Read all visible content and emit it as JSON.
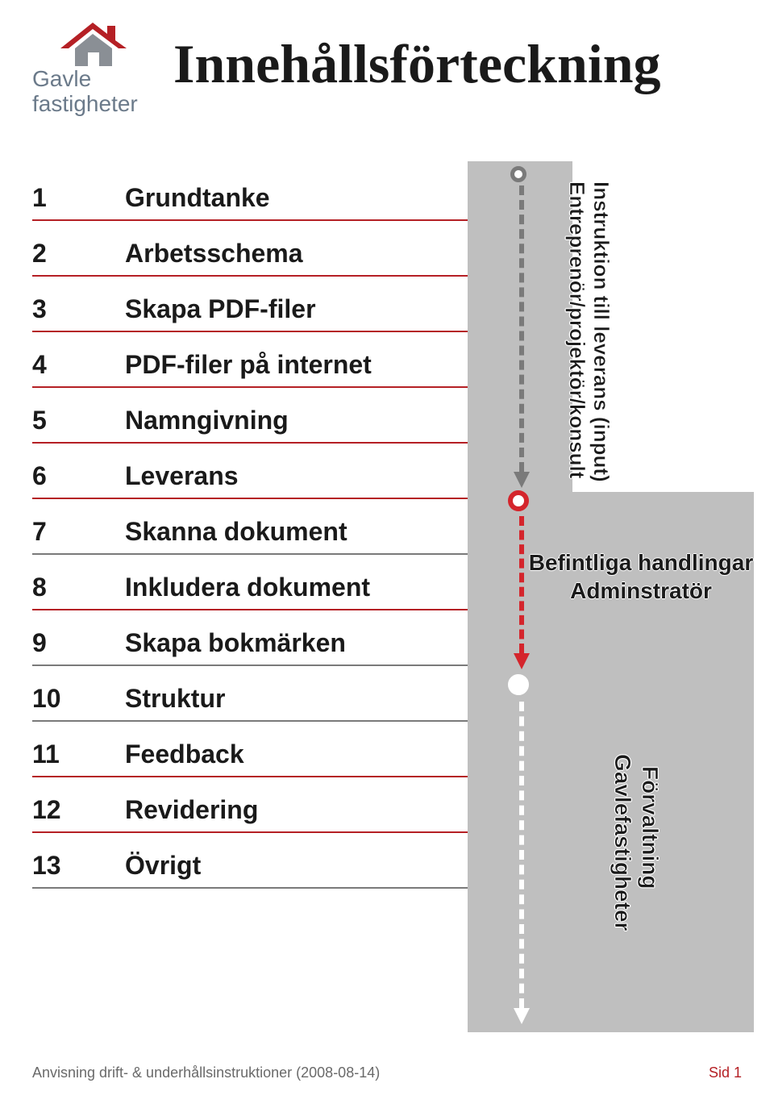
{
  "logo": {
    "line1": "Gavle",
    "line2": "fastigheter",
    "text_color": "#6b7a8a",
    "roof_red": "#b52025",
    "wall_grey": "#8a8f95"
  },
  "title": "Innehållsförteckning",
  "colors": {
    "rule_red": "#b52025",
    "rule_grey": "#7a7a7a",
    "grey_block": "#bfbfbf",
    "arrow_grey": "#7a7a7a",
    "arrow_red": "#d4252c",
    "arrow_white": "#ffffff",
    "text_dark": "#1a1a1a",
    "footer_grey": "#6a6a6a",
    "footer_red": "#b52025"
  },
  "toc": [
    {
      "num": "1",
      "label": "Grundtanke",
      "rule": "#b52025"
    },
    {
      "num": "2",
      "label": "Arbetsschema",
      "rule": "#b52025"
    },
    {
      "num": "3",
      "label": "Skapa PDF-filer",
      "rule": "#b52025"
    },
    {
      "num": "4",
      "label": "PDF-filer på internet",
      "rule": "#b52025"
    },
    {
      "num": "5",
      "label": "Namngivning",
      "rule": "#b52025"
    },
    {
      "num": "6",
      "label": "Leverans",
      "rule": "#b52025"
    },
    {
      "num": "7",
      "label": "Skanna dokument",
      "rule": "#7a7a7a"
    },
    {
      "num": "8",
      "label": "Inkludera dokument",
      "rule": "#b52025"
    },
    {
      "num": "9",
      "label": "Skapa bokmärken",
      "rule": "#7a7a7a"
    },
    {
      "num": "10",
      "label": "Struktur",
      "rule": "#7a7a7a"
    },
    {
      "num": "11",
      "label": "Feedback",
      "rule": "#b52025"
    },
    {
      "num": "12",
      "label": "Revidering",
      "rule": "#b52025"
    },
    {
      "num": "13",
      "label": "Övrigt",
      "rule": "#7a7a7a"
    }
  ],
  "side_labels": {
    "block1_line1": "Instruktion till leverans (input)",
    "block1_line2": "Entreprenör/projektör/konsult",
    "block2_line1": "Befintliga handlingar",
    "block2_line2": "Adminstratör",
    "block3_line1": "Förvaltning",
    "block3_line2": "Gavlefastigheter"
  },
  "footer": {
    "left": "Anvisning drift- & underhållsinstruktioner (2008-08-14)",
    "right": "Sid 1"
  }
}
